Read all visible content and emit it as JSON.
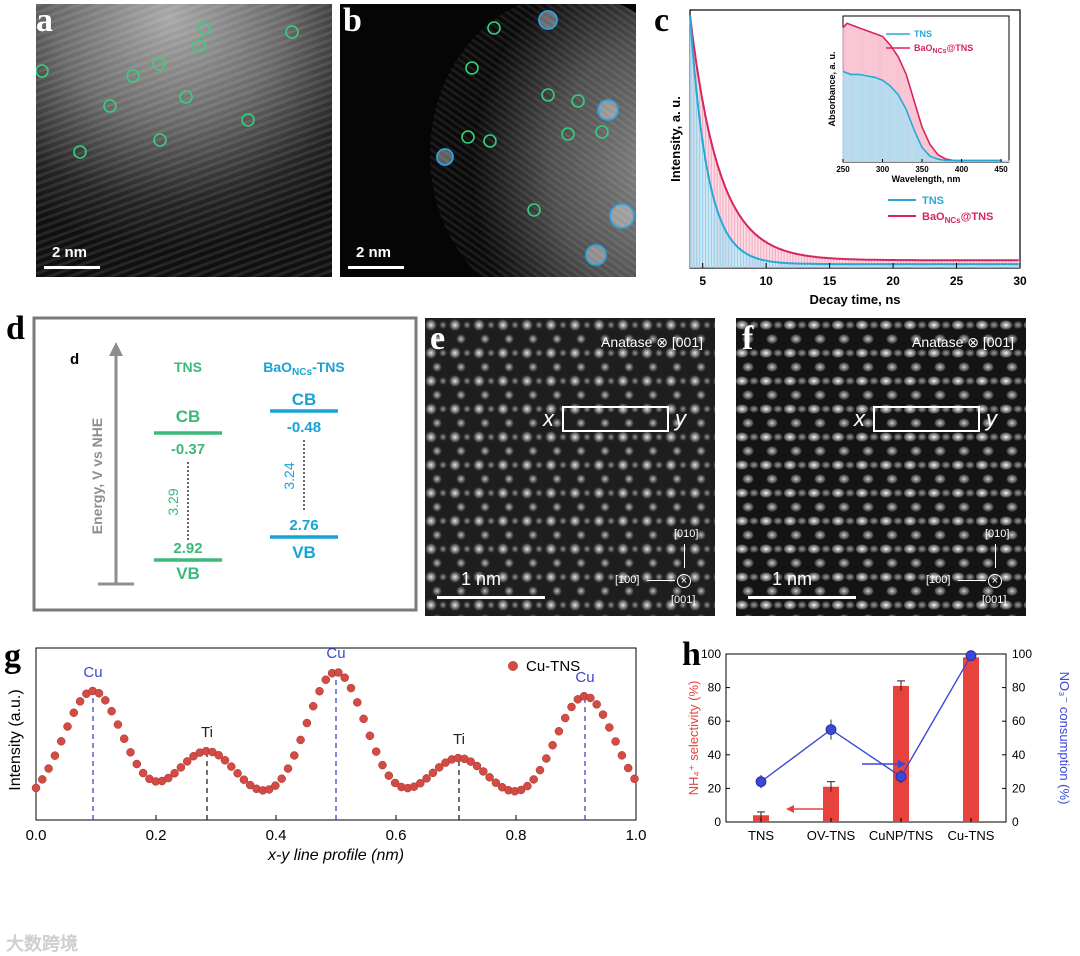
{
  "panels": {
    "a": {
      "label": "a",
      "scale": "2 nm"
    },
    "b": {
      "label": "b",
      "scale": "2 nm"
    },
    "c": {
      "label": "c"
    },
    "d": {
      "label": "d"
    },
    "e": {
      "label": "e",
      "scale": "1 nm",
      "crystal": "Anatase ⊗ [001]",
      "x": "x",
      "y": "y",
      "dir_010": "[010]",
      "dir_100": "[100]",
      "dir_001": "[001]"
    },
    "f": {
      "label": "f",
      "scale": "1 nm",
      "crystal": "Anatase ⊗ [001]",
      "x": "x",
      "y": "y",
      "dir_010": "[010]",
      "dir_100": "[100]",
      "dir_001": "[001]"
    },
    "g": {
      "label": "g"
    },
    "h": {
      "label": "h"
    }
  },
  "band_diagram": {
    "inner_label": "d",
    "yaxis": "Energy, V vs NHE",
    "tns": {
      "name": "TNS",
      "cb_label": "CB",
      "cb_value": "-0.37",
      "gap": "3.29",
      "vb_value": "2.92",
      "vb_label": "VB"
    },
    "bao": {
      "name_main": "BaO",
      "name_sub": "NCs",
      "name_tail": "-TNS",
      "cb_label": "CB",
      "cb_value": "-0.48",
      "gap": "3.24",
      "vb_value": "2.76",
      "vb_label": "VB"
    },
    "colors": {
      "tns": "#3cb878",
      "bao": "#17a3d6"
    }
  },
  "chart_data": [
    {
      "type": "area",
      "title": "",
      "xlabel": "Decay time, ns",
      "ylabel": "Intensity, a. u.",
      "xlim": [
        4,
        30
      ],
      "xticks": [
        5,
        10,
        15,
        20,
        25,
        30
      ],
      "series": [
        {
          "name": "TNS",
          "color": "#29a8d8",
          "tau": 1.4,
          "floor": 0.015
        },
        {
          "name_main": "BaO",
          "name_sub": "NCs",
          "name_tail": "@TNS",
          "color": "#d6265c",
          "tau": 2.3,
          "floor": 0.03
        }
      ],
      "inset": {
        "xlabel": "Wavelength, nm",
        "ylabel": "Absorbance, a. u.",
        "xlim": [
          250,
          460
        ],
        "xticks": [
          250,
          300,
          350,
          400,
          450
        ],
        "legend": [
          {
            "name": "TNS"
          },
          {
            "name_main": "BaO",
            "name_sub": "NCs",
            "name_tail": "@TNS"
          }
        ],
        "series": [
          {
            "name": "TNS",
            "x": [
              250,
              260,
              270,
              280,
              290,
              300,
              310,
              320,
              330,
              340,
              350,
              360,
              370,
              380,
              390,
              400,
              420,
              450
            ],
            "y": [
              0.62,
              0.6,
              0.6,
              0.59,
              0.58,
              0.56,
              0.52,
              0.46,
              0.36,
              0.22,
              0.1,
              0.04,
              0.02,
              0.01,
              0.01,
              0.01,
              0.01,
              0.01
            ]
          },
          {
            "name": "BaO@TNS",
            "x": [
              250,
              255,
              260,
              270,
              280,
              290,
              300,
              310,
              320,
              330,
              340,
              350,
              360,
              370,
              380,
              390,
              400,
              420,
              450
            ],
            "y": [
              0.92,
              0.95,
              0.94,
              0.92,
              0.9,
              0.88,
              0.86,
              0.8,
              0.72,
              0.6,
              0.42,
              0.24,
              0.12,
              0.05,
              0.02,
              0.01,
              0.01,
              0.01,
              0.01
            ]
          }
        ]
      }
    },
    {
      "type": "scatter",
      "title": "",
      "xlabel": "x-y line profile (nm)",
      "ylabel": "Intensity (a.u.)",
      "xlim": [
        0.0,
        1.0
      ],
      "xticks": [
        "0.0",
        "0.2",
        "0.4",
        "0.6",
        "0.8",
        "1.0"
      ],
      "legend": "Cu-TNS",
      "peaks": [
        {
          "label": "Cu",
          "x": 0.095,
          "y": 0.75,
          "color": "#3c46c8"
        },
        {
          "label": "Ti",
          "x": 0.285,
          "y": 0.4,
          "color": "#222222"
        },
        {
          "label": "Cu",
          "x": 0.5,
          "y": 0.86,
          "color": "#3c46c8"
        },
        {
          "label": "Ti",
          "x": 0.705,
          "y": 0.36,
          "color": "#222222"
        },
        {
          "label": "Cu",
          "x": 0.915,
          "y": 0.72,
          "color": "#3c46c8"
        }
      ]
    },
    {
      "type": "bar",
      "title": "",
      "categories": [
        "TNS",
        "OV-TNS",
        "CuNP/TNS",
        "Cu-TNS"
      ],
      "ylabel_left": "NH₄⁺ selectivity (%)",
      "ylabel_right": "NO₃⁻ consumption (%)",
      "ylim": [
        0,
        100
      ],
      "yticks": [
        0,
        20,
        40,
        60,
        80,
        100
      ],
      "series": [
        {
          "name": "NH4+ selectivity",
          "axis": "left",
          "type": "bar",
          "color": "#e8423c",
          "values": [
            4,
            21,
            81,
            98
          ],
          "errors": [
            2,
            3,
            3,
            0
          ]
        },
        {
          "name": "NO3- consumption",
          "axis": "right",
          "type": "line",
          "color": "#3c46d8",
          "values": [
            24,
            55,
            27,
            99
          ],
          "errors": [
            4,
            6,
            4,
            1
          ]
        }
      ]
    }
  ],
  "watermark": "大数跨境"
}
